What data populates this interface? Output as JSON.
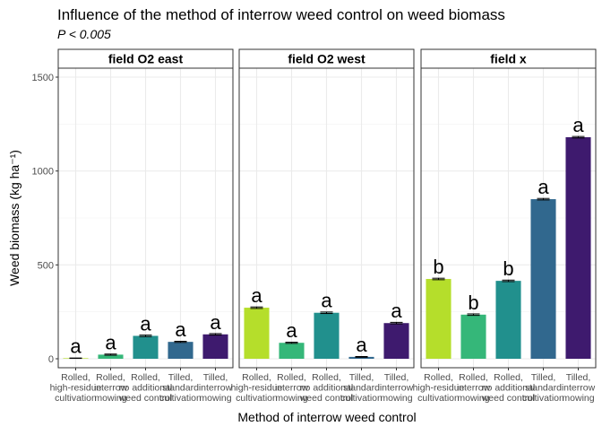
{
  "chart_data": {
    "type": "bar",
    "title": "Influence of the method of interrow weed control on weed biomass",
    "subtitle": "P < 0.005",
    "xlabel": "Method of interrow weed control",
    "ylabel": "Weed biomass (kg ha⁻¹)",
    "ylim": [
      0,
      1500
    ],
    "yticks": [
      0,
      500,
      1000,
      1500
    ],
    "grid": true,
    "legend": "none",
    "categories": [
      [
        "Rolled,",
        "high-residue",
        "cultivation"
      ],
      [
        "Rolled,",
        "interrow",
        "mowing"
      ],
      [
        "Rolled,",
        "no additional",
        "weed control"
      ],
      [
        "Tilled,",
        "standard",
        "cultivation"
      ],
      [
        "Tilled,",
        "interrow",
        "mowing"
      ]
    ],
    "colors": [
      "#b5de2b",
      "#35b779",
      "#21908d",
      "#31688e",
      "#3e1a6e"
    ],
    "panels": [
      {
        "name": "field O2 east",
        "values": [
          3,
          22,
          122,
          90,
          130
        ],
        "errors": [
          1,
          3,
          4,
          3,
          4
        ],
        "letters": [
          "a",
          "a",
          "a",
          "a",
          "a"
        ]
      },
      {
        "name": "field O2 west",
        "values": [
          272,
          85,
          245,
          10,
          190
        ],
        "errors": [
          4,
          3,
          4,
          2,
          4
        ],
        "letters": [
          "a",
          "a",
          "a",
          "a",
          "a"
        ]
      },
      {
        "name": "field x",
        "values": [
          425,
          235,
          415,
          850,
          1180
        ],
        "errors": [
          4,
          4,
          4,
          4,
          4
        ],
        "letters": [
          "b",
          "b",
          "b",
          "a",
          "a"
        ]
      }
    ]
  }
}
